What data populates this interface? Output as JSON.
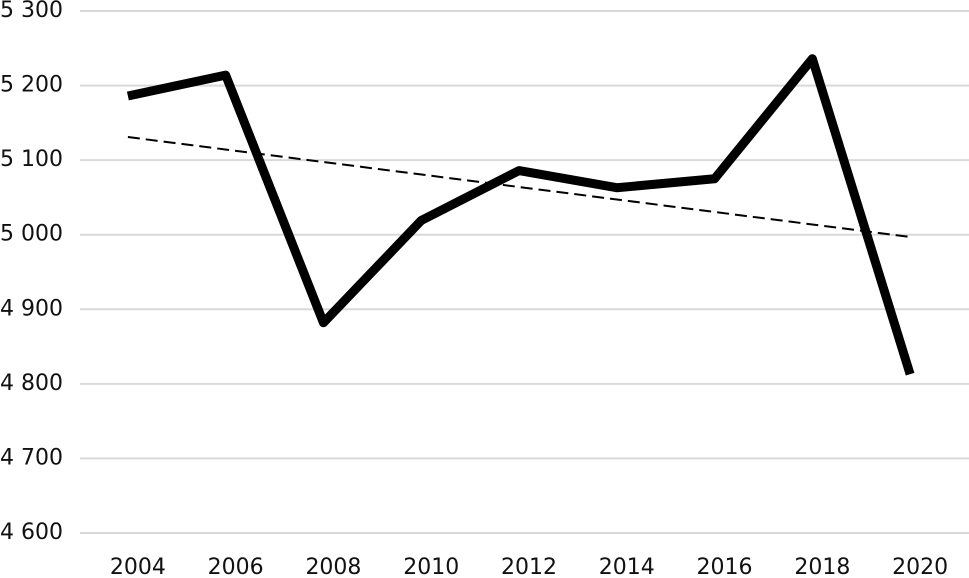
{
  "chart_data": {
    "type": "line",
    "categories": [
      "2004",
      "2006",
      "2008",
      "2010",
      "2012",
      "2014",
      "2016",
      "2018",
      "2020"
    ],
    "values": [
      5186,
      5214,
      4882,
      5019,
      5086,
      5063,
      5075,
      5236,
      4813
    ],
    "color": "#000000",
    "trend": [
      5131,
      4997
    ],
    "trend_color": "#000000",
    "ylim": [
      4600,
      5300
    ],
    "yticks": [
      {
        "value": 4600,
        "label": "4 600"
      },
      {
        "value": 4700,
        "label": "4 700"
      },
      {
        "value": 4800,
        "label": "4 800"
      },
      {
        "value": 4900,
        "label": "4 900"
      },
      {
        "value": 5000,
        "label": "5 000"
      },
      {
        "value": 5100,
        "label": "5 100"
      },
      {
        "value": 5200,
        "label": "5 200"
      },
      {
        "value": 5300,
        "label": "5 300"
      }
    ],
    "grid": true
  }
}
